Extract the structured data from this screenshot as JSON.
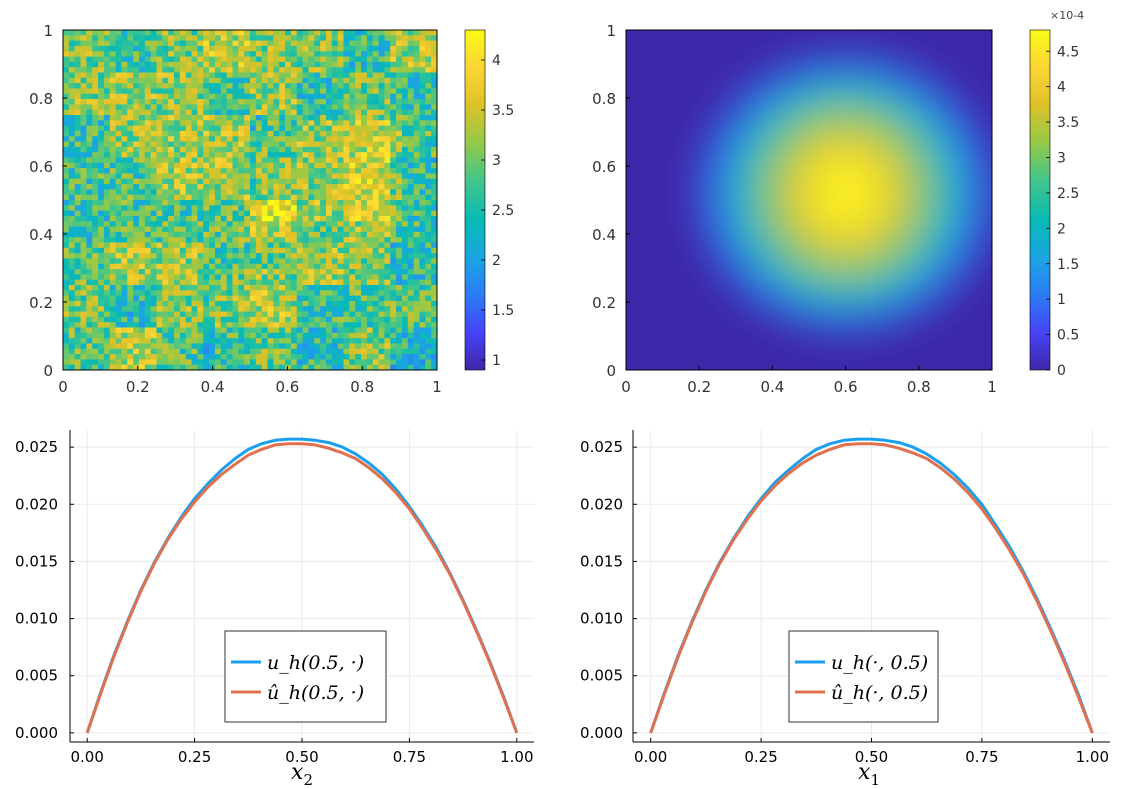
{
  "colors": {
    "parula": [
      "#3e26a8",
      "#4743f7",
      "#2c7cf6",
      "#1ca5e3",
      "#07bab5",
      "#44c689",
      "#95c948",
      "#dec228",
      "#fcd535",
      "#f9fb15"
    ],
    "series_blue": "#1a9eef",
    "series_orange": "#e0714e",
    "grid": "#ebebeb",
    "axis": "#000000"
  },
  "chart_data": [
    {
      "type": "heatmap",
      "description_field": "random coefficient field",
      "xticks": [
        "0",
        "0.2",
        "0.4",
        "0.6",
        "0.8",
        "1"
      ],
      "yticks": [
        "0",
        "0.2",
        "0.4",
        "0.6",
        "0.8",
        "1"
      ],
      "xlim": [
        0,
        1
      ],
      "ylim": [
        0,
        1
      ],
      "colorbar": {
        "ticks": [
          "1",
          "1.5",
          "2",
          "2.5",
          "3",
          "3.5",
          "4"
        ],
        "tick_values": [
          1,
          1.5,
          2,
          2.5,
          3,
          3.5,
          4
        ],
        "range": [
          0.9,
          4.3
        ],
        "multiplier": ""
      },
      "grid": false
    },
    {
      "type": "heatmap",
      "xticks": [
        "0",
        "0.2",
        "0.4",
        "0.6",
        "0.8",
        "1"
      ],
      "yticks": [
        "0",
        "0.2",
        "0.4",
        "0.6",
        "0.8",
        "1"
      ],
      "xlim": [
        0,
        1
      ],
      "ylim": [
        0,
        1
      ],
      "colorbar": {
        "ticks": [
          "0",
          "0.5",
          "1",
          "1.5",
          "2",
          "2.5",
          "3",
          "3.5",
          "4",
          "4.5"
        ],
        "tick_values": [
          0,
          0.5,
          1,
          1.5,
          2,
          2.5,
          3,
          3.5,
          4,
          4.5
        ],
        "range": [
          0,
          4.8
        ],
        "multiplier": "×10-4"
      },
      "peak": {
        "x": 0.6,
        "y": 0.52,
        "value": 4.8
      },
      "grid": false
    },
    {
      "type": "line",
      "xlabel": "x2",
      "xticks": [
        "0.00",
        "0.25",
        "0.50",
        "0.75",
        "1.00"
      ],
      "yticks": [
        "0.000",
        "0.005",
        "0.010",
        "0.015",
        "0.020",
        "0.025"
      ],
      "xlim": [
        -0.04,
        1.04
      ],
      "ylim": [
        -0.0008,
        0.0265
      ],
      "grid": true,
      "legend_position": "bottom-center",
      "series": [
        {
          "name": "u_h(0.5, ·)",
          "color": "#1a9eef",
          "x": [
            0,
            0.031,
            0.0625,
            0.094,
            0.125,
            0.156,
            0.1875,
            0.219,
            0.25,
            0.281,
            0.3125,
            0.344,
            0.375,
            0.406,
            0.4375,
            0.469,
            0.5,
            0.531,
            0.5625,
            0.594,
            0.625,
            0.656,
            0.6875,
            0.719,
            0.75,
            0.781,
            0.8125,
            0.844,
            0.875,
            0.906,
            0.9375,
            0.969,
            1.0
          ],
          "y": [
            0,
            0.0035,
            0.0068,
            0.0098,
            0.0125,
            0.0149,
            0.017,
            0.0189,
            0.0205,
            0.0218,
            0.023,
            0.024,
            0.0248,
            0.0253,
            0.0256,
            0.0257,
            0.0257,
            0.0256,
            0.0254,
            0.025,
            0.0244,
            0.0236,
            0.0226,
            0.0213,
            0.0198,
            0.0181,
            0.0162,
            0.014,
            0.0116,
            0.009,
            0.0062,
            0.0032,
            0
          ]
        },
        {
          "name": "û_h(0.5, ·)",
          "color": "#e0714e",
          "x": [
            0,
            0.031,
            0.0625,
            0.094,
            0.125,
            0.156,
            0.1875,
            0.219,
            0.25,
            0.281,
            0.3125,
            0.344,
            0.375,
            0.406,
            0.4375,
            0.469,
            0.5,
            0.531,
            0.5625,
            0.594,
            0.625,
            0.656,
            0.6875,
            0.719,
            0.75,
            0.781,
            0.8125,
            0.844,
            0.875,
            0.906,
            0.9375,
            0.969,
            1.0
          ],
          "y": [
            0,
            0.0034,
            0.0067,
            0.0097,
            0.0124,
            0.0148,
            0.0169,
            0.0187,
            0.0202,
            0.0215,
            0.0226,
            0.0235,
            0.0243,
            0.0248,
            0.0252,
            0.0253,
            0.0253,
            0.0252,
            0.0249,
            0.0245,
            0.024,
            0.0232,
            0.0222,
            0.021,
            0.0196,
            0.0179,
            0.016,
            0.0139,
            0.0115,
            0.0089,
            0.0061,
            0.0031,
            0
          ]
        }
      ]
    },
    {
      "type": "line",
      "xlabel": "x1",
      "xticks": [
        "0.00",
        "0.25",
        "0.50",
        "0.75",
        "1.00"
      ],
      "yticks": [
        "0.000",
        "0.005",
        "0.010",
        "0.015",
        "0.020",
        "0.025"
      ],
      "xlim": [
        -0.04,
        1.04
      ],
      "ylim": [
        -0.0008,
        0.0265
      ],
      "grid": true,
      "legend_position": "bottom-center",
      "series": [
        {
          "name": "u_h(·, 0.5)",
          "color": "#1a9eef",
          "x": [
            0,
            0.031,
            0.0625,
            0.094,
            0.125,
            0.156,
            0.1875,
            0.219,
            0.25,
            0.281,
            0.3125,
            0.344,
            0.375,
            0.406,
            0.4375,
            0.469,
            0.5,
            0.531,
            0.5625,
            0.594,
            0.625,
            0.656,
            0.6875,
            0.719,
            0.75,
            0.781,
            0.8125,
            0.844,
            0.875,
            0.906,
            0.9375,
            0.969,
            1.0
          ],
          "y": [
            0,
            0.0035,
            0.0068,
            0.0098,
            0.0125,
            0.0149,
            0.017,
            0.0189,
            0.0205,
            0.0219,
            0.023,
            0.024,
            0.0248,
            0.0253,
            0.0256,
            0.0257,
            0.0257,
            0.0256,
            0.0254,
            0.025,
            0.0244,
            0.0236,
            0.0226,
            0.0214,
            0.02,
            0.0182,
            0.0163,
            0.0141,
            0.0117,
            0.0091,
            0.0063,
            0.0033,
            0
          ]
        },
        {
          "name": "û_h(·, 0.5)",
          "color": "#e0714e",
          "x": [
            0,
            0.031,
            0.0625,
            0.094,
            0.125,
            0.156,
            0.1875,
            0.219,
            0.25,
            0.281,
            0.3125,
            0.344,
            0.375,
            0.406,
            0.4375,
            0.469,
            0.5,
            0.531,
            0.5625,
            0.594,
            0.625,
            0.656,
            0.6875,
            0.719,
            0.75,
            0.781,
            0.8125,
            0.844,
            0.875,
            0.906,
            0.9375,
            0.969,
            1.0
          ],
          "y": [
            0,
            0.0034,
            0.0067,
            0.0097,
            0.0124,
            0.0148,
            0.0169,
            0.0187,
            0.0203,
            0.0216,
            0.0227,
            0.0236,
            0.0243,
            0.0248,
            0.0252,
            0.0253,
            0.0253,
            0.0252,
            0.0249,
            0.0245,
            0.024,
            0.0232,
            0.0222,
            0.021,
            0.0196,
            0.0179,
            0.016,
            0.0139,
            0.0115,
            0.0089,
            0.0061,
            0.0031,
            0
          ]
        }
      ]
    }
  ]
}
